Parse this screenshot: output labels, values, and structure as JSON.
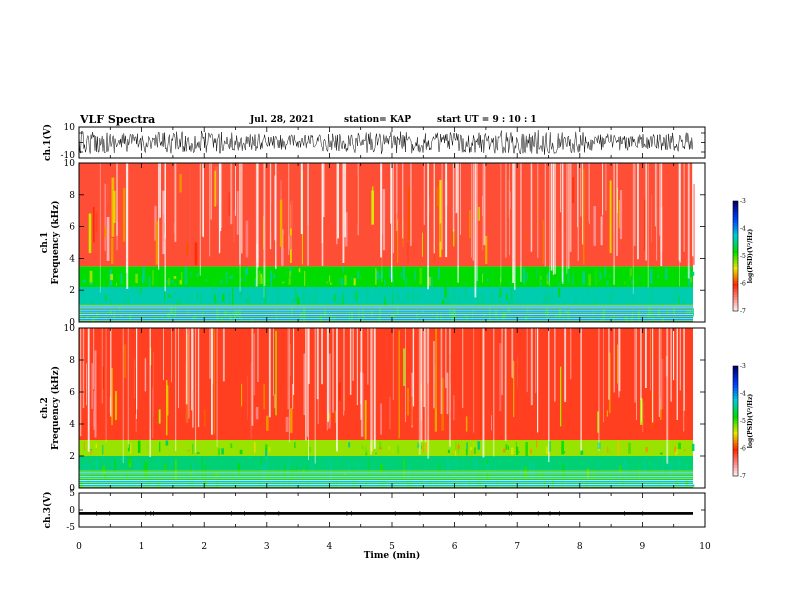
{
  "header": {
    "title": "VLF Spectra",
    "date": "Jul. 28, 2021",
    "station": "station= KAP",
    "start": "start UT =  9 : 10 : 1"
  },
  "chart_data": [
    {
      "type": "line",
      "name": "waveform-ch1",
      "ylabel": "ch.1(V)",
      "ylim": [
        -10,
        10
      ],
      "yticks": [
        "10",
        "-10"
      ],
      "xlim": [
        0,
        10
      ],
      "description": "dense noisy waveform filling roughly -8 to +8 V"
    },
    {
      "type": "heatmap",
      "name": "spectrogram-ch1",
      "ylabel": "ch.1",
      "ylabel2": "Frequency (kHz)",
      "ylim": [
        0,
        10
      ],
      "yticks": [
        "0",
        "2",
        "4",
        "6",
        "8",
        "10"
      ],
      "xlim": [
        0,
        10
      ],
      "colorbar": {
        "label": "log(PSD)(V²/Hz)",
        "ticks": [
          "-3",
          "-4",
          "-5",
          "-6",
          "-7"
        ],
        "range": [
          -7,
          -3
        ]
      },
      "bands": [
        {
          "f0": 0.0,
          "f1": 1.0,
          "level": 0.78
        },
        {
          "f0": 1.0,
          "f1": 2.2,
          "level": 0.72
        },
        {
          "f0": 2.2,
          "f1": 3.5,
          "level": 0.6
        },
        {
          "f0": 3.5,
          "f1": 10.0,
          "level": 0.25
        }
      ]
    },
    {
      "type": "heatmap",
      "name": "spectrogram-ch2",
      "ylabel": "ch.2",
      "ylabel2": "Frequency (kHz)",
      "ylim": [
        0,
        10
      ],
      "yticks": [
        "0",
        "2",
        "4",
        "6",
        "8",
        "10"
      ],
      "xlim": [
        0,
        10
      ],
      "colorbar": {
        "label": "log(PSD)(V²/Hz)",
        "ticks": [
          "-3",
          "-4",
          "-5",
          "-6",
          "-7"
        ],
        "range": [
          -7,
          -3
        ]
      },
      "bands": [
        {
          "f0": 0.0,
          "f1": 0.5,
          "level": 0.75
        },
        {
          "f0": 0.5,
          "f1": 2.0,
          "level": 0.68
        },
        {
          "f0": 2.0,
          "f1": 3.0,
          "level": 0.5
        },
        {
          "f0": 3.0,
          "f1": 10.0,
          "level": 0.27
        }
      ]
    },
    {
      "type": "line",
      "name": "waveform-ch3",
      "ylabel": "ch.3(V)",
      "ylim": [
        -5,
        5
      ],
      "yticks": [
        "5",
        "0",
        "-5"
      ],
      "xlim": [
        0,
        10
      ],
      "xlabel": "Time (min)",
      "xticks": [
        "0",
        "1",
        "2",
        "3",
        "4",
        "5",
        "6",
        "7",
        "8",
        "9",
        "10"
      ],
      "description": "narrow flat band near -1 V"
    }
  ]
}
